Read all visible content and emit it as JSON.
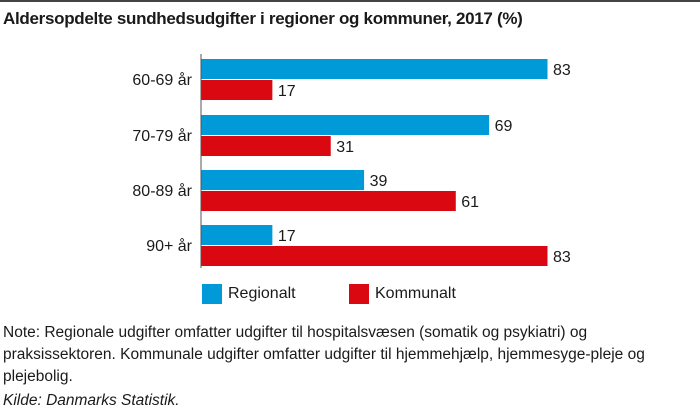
{
  "chart_data": {
    "type": "bar",
    "orientation": "horizontal",
    "title": "Aldersopdelte sundhedsudgifter i regioner og kommuner, 2017 (%)",
    "categories": [
      "60-69 år",
      "70-79 år",
      "80-89 år",
      "90+ år"
    ],
    "series": [
      {
        "name": "Regionalt",
        "values": [
          83,
          69,
          39,
          17
        ],
        "color": "#009ad8"
      },
      {
        "name": "Kommunalt",
        "values": [
          17,
          31,
          61,
          83
        ],
        "color": "#d90811"
      }
    ],
    "xlim": [
      0,
      100
    ],
    "grid": false,
    "legend": "bottom",
    "data_labels": true
  },
  "note": "Note: Regionale udgifter omfatter udgifter til hospitalsvæsen (somatik og psykiatri) og praksissektoren. Kommunale udgifter omfatter udgifter til hjemmehjælp, hjemmesyge-pleje og plejebolig.",
  "source": "Kilde: Danmarks Statistik."
}
